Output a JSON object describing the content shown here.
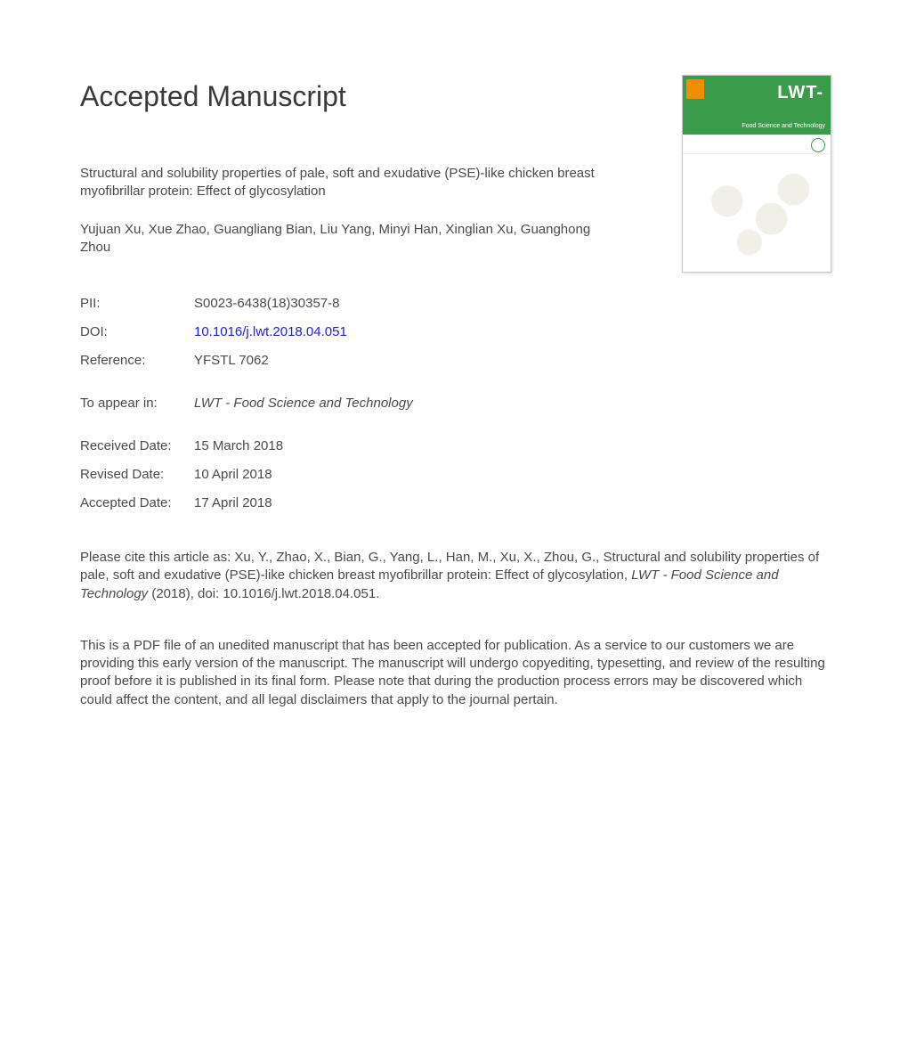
{
  "heading": "Accepted Manuscript",
  "cover": {
    "journal_short": "LWT-",
    "journal_sub": "Food Science and Technology",
    "bg_color": "#3a9b4a",
    "publisher_badge_color": "#f28c00",
    "title_color": "#ffffff"
  },
  "article": {
    "title": "Structural and solubility properties of pale, soft and exudative (PSE)-like chicken breast myofibrillar protein: Effect of glycosylation",
    "authors": "Yujuan Xu, Xue Zhao, Guangliang Bian, Liu Yang, Minyi Han, Xinglian Xu, Guanghong Zhou"
  },
  "meta": {
    "pii_label": "PII:",
    "pii": "S0023-6438(18)30357-8",
    "doi_label": "DOI:",
    "doi": "10.1016/j.lwt.2018.04.051",
    "reference_label": "Reference:",
    "reference": "YFSTL 7062",
    "to_appear_label": "To appear in:",
    "to_appear": "LWT - Food Science and Technology",
    "received_label": "Received Date:",
    "received": "15 March 2018",
    "revised_label": "Revised Date:",
    "revised": "10 April 2018",
    "accepted_label": "Accepted Date:",
    "accepted": "17 April 2018"
  },
  "citation": {
    "prefix": "Please cite this article as: Xu, Y., Zhao, X., Bian, G., Yang, L., Han, M., Xu, X., Zhou, G., Structural and solubility properties of pale, soft and exudative (PSE)-like chicken breast myofibrillar protein: Effect of glycosylation, ",
    "journal": "LWT - Food Science and Technology",
    "suffix": " (2018), doi: 10.1016/j.lwt.2018.04.051."
  },
  "disclaimer": "This is a PDF file of an unedited manuscript that has been accepted for publication. As a service to our customers we are providing this early version of the manuscript. The manuscript will undergo copyediting, typesetting, and review of the resulting proof before it is published in its final form. Please note that during the production process errors may be discovered which could affect the content, and all legal disclaimers that apply to the journal pertain.",
  "colors": {
    "text": "#4a4a4a",
    "link": "#1a1aff",
    "background": "#ffffff"
  }
}
